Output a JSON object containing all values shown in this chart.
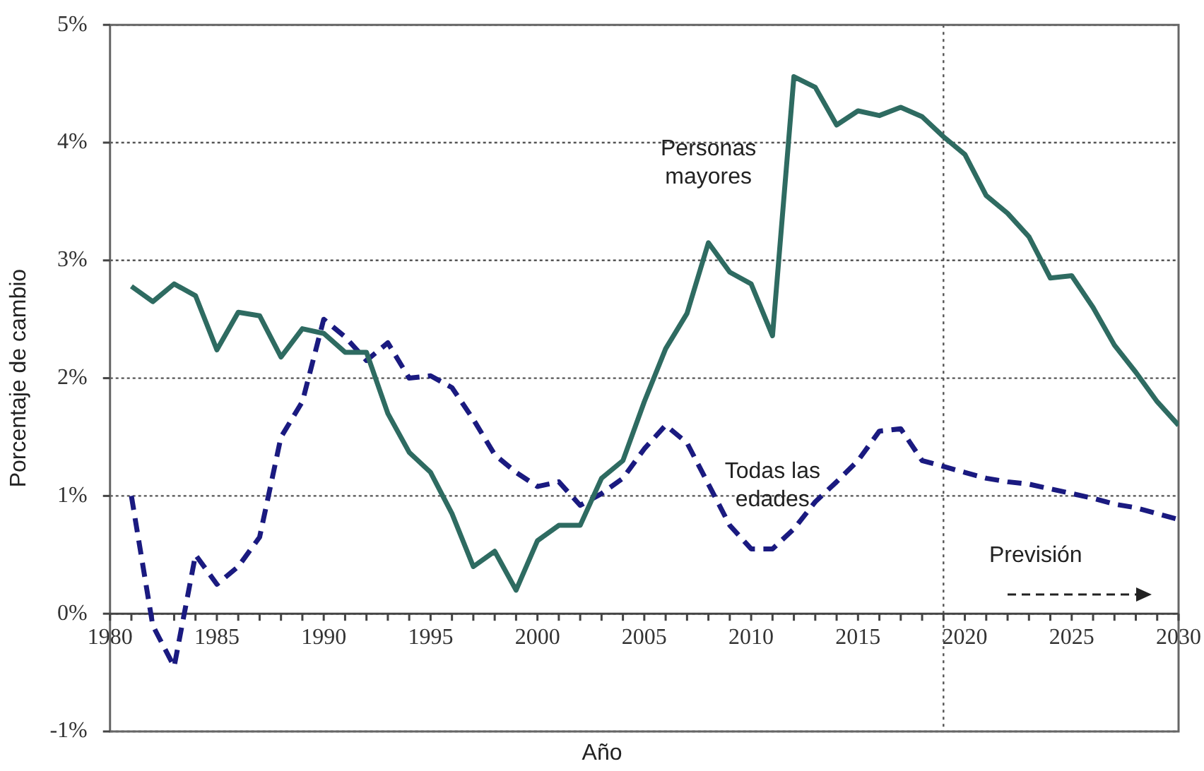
{
  "chart_data": {
    "type": "line",
    "xlabel": "Año",
    "ylabel": "Porcentaje de cambio",
    "x": [
      1981,
      1982,
      1983,
      1984,
      1985,
      1986,
      1987,
      1988,
      1989,
      1990,
      1991,
      1992,
      1993,
      1994,
      1995,
      1996,
      1997,
      1998,
      1999,
      2000,
      2001,
      2002,
      2003,
      2004,
      2005,
      2006,
      2007,
      2008,
      2009,
      2010,
      2011,
      2012,
      2013,
      2014,
      2015,
      2016,
      2017,
      2018,
      2019,
      2020,
      2021,
      2022,
      2023,
      2024,
      2025,
      2026,
      2027,
      2028,
      2029,
      2030
    ],
    "series": [
      {
        "name": "Personas mayores",
        "color": "#2e6b61",
        "line_style": "solid",
        "values": [
          2.78,
          2.65,
          2.8,
          2.7,
          2.24,
          2.56,
          2.53,
          2.18,
          2.42,
          2.38,
          2.22,
          2.22,
          1.7,
          1.37,
          1.2,
          0.85,
          0.4,
          0.53,
          0.2,
          0.62,
          0.75,
          0.75,
          1.15,
          1.3,
          1.8,
          2.25,
          2.55,
          3.15,
          2.9,
          2.8,
          2.36,
          4.56,
          4.47,
          4.15,
          4.27,
          4.23,
          4.3,
          4.22,
          4.05,
          3.9,
          3.55,
          3.4,
          3.2,
          2.85,
          2.87,
          2.6,
          2.28,
          2.05,
          1.8,
          1.6
        ]
      },
      {
        "name": "Todas las edades",
        "color": "#1a1a80",
        "line_style": "dashed",
        "values": [
          1.0,
          -0.1,
          -0.45,
          0.5,
          0.25,
          0.4,
          0.65,
          1.5,
          1.8,
          2.5,
          2.35,
          2.15,
          2.3,
          2.0,
          2.02,
          1.92,
          1.65,
          1.35,
          1.2,
          1.08,
          1.12,
          0.92,
          1.02,
          1.15,
          1.4,
          1.6,
          1.45,
          1.1,
          0.75,
          0.55,
          0.55,
          0.72,
          0.95,
          1.12,
          1.3,
          1.55,
          1.57,
          1.3,
          1.25,
          1.2,
          1.15,
          1.12,
          1.1,
          1.06,
          1.02,
          0.98,
          0.93,
          0.9,
          0.85,
          0.8
        ]
      }
    ],
    "xlim": [
      1980,
      2030
    ],
    "xticks": [
      1980,
      {
        "value": 1981,
        "label": null
      },
      {
        "value": 1982,
        "label": null
      },
      {
        "value": 1983,
        "label": null
      },
      {
        "value": 1984,
        "label": null
      },
      1985,
      {
        "value": 1986,
        "label": null
      },
      {
        "value": 1987,
        "label": null
      },
      {
        "value": 1988,
        "label": null
      },
      {
        "value": 1989,
        "label": null
      },
      1990,
      {
        "value": 1991,
        "label": null
      },
      {
        "value": 1992,
        "label": null
      },
      {
        "value": 1993,
        "label": null
      },
      {
        "value": 1994,
        "label": null
      },
      1995,
      {
        "value": 1996,
        "label": null
      },
      {
        "value": 1997,
        "label": null
      },
      {
        "value": 1998,
        "label": null
      },
      {
        "value": 1999,
        "label": null
      },
      2000,
      {
        "value": 2001,
        "label": null
      },
      {
        "value": 2002,
        "label": null
      },
      {
        "value": 2003,
        "label": null
      },
      {
        "value": 2004,
        "label": null
      },
      2005,
      {
        "value": 2006,
        "label": null
      },
      {
        "value": 2007,
        "label": null
      },
      {
        "value": 2008,
        "label": null
      },
      {
        "value": 2009,
        "label": null
      },
      2010,
      {
        "value": 2011,
        "label": null
      },
      {
        "value": 2012,
        "label": null
      },
      {
        "value": 2013,
        "label": null
      },
      {
        "value": 2014,
        "label": null
      },
      2015,
      {
        "value": 2016,
        "label": null
      },
      {
        "value": 2017,
        "label": null
      },
      {
        "value": 2018,
        "label": null
      },
      {
        "value": 2019,
        "label": null
      },
      2020,
      {
        "value": 2021,
        "label": null
      },
      {
        "value": 2022,
        "label": null
      },
      {
        "value": 2023,
        "label": null
      },
      {
        "value": 2024,
        "label": null
      },
      2025,
      {
        "value": 2026,
        "label": null
      },
      {
        "value": 2027,
        "label": null
      },
      {
        "value": 2028,
        "label": null
      },
      {
        "value": 2029,
        "label": null
      },
      2030
    ],
    "ylim": [
      -1,
      5
    ],
    "yticks": [
      {
        "value": -1,
        "label": "-1%"
      },
      {
        "value": 0,
        "label": "0%"
      },
      {
        "value": 1,
        "label": "1%"
      },
      {
        "value": 2,
        "label": "2%"
      },
      {
        "value": 3,
        "label": "3%"
      },
      {
        "value": 4,
        "label": "4%"
      },
      {
        "value": 5,
        "label": "5%"
      }
    ],
    "grid": "y",
    "legend": false,
    "marker": "none",
    "ref_lines": [
      {
        "axis": "x",
        "value": 2019,
        "color": "#555555",
        "line_style": "dotted"
      }
    ],
    "annotations": [
      "Previsión"
    ]
  }
}
